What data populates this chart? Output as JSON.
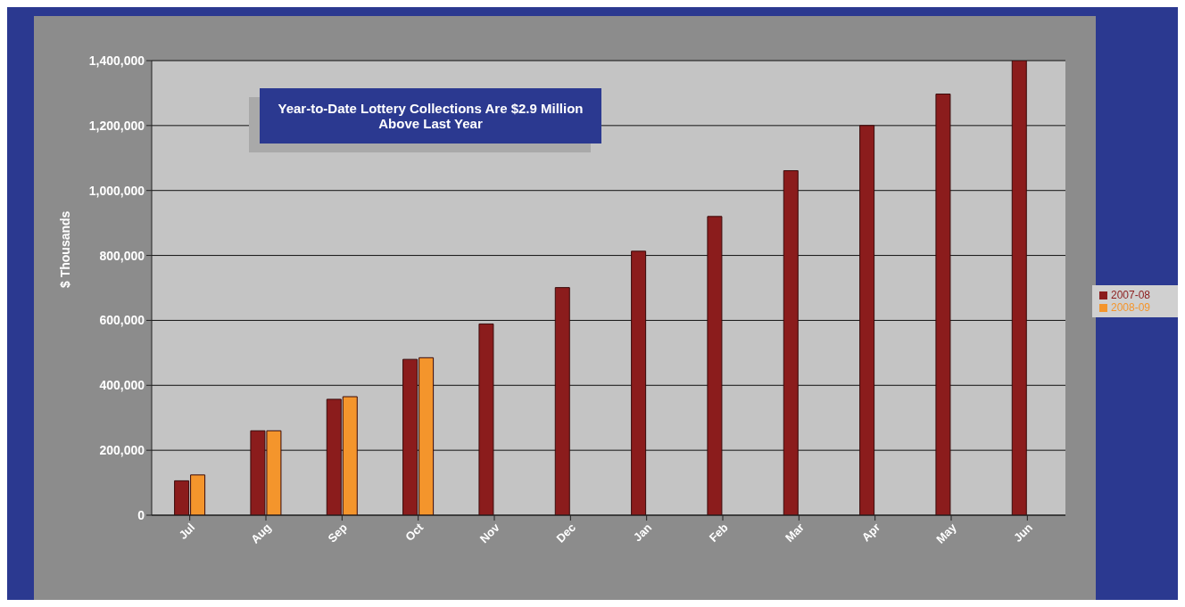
{
  "chart_data": {
    "type": "bar",
    "ylabel": "$ Thousands",
    "categories": [
      "Jul",
      "Aug",
      "Sep",
      "Oct",
      "Nov",
      "Dec",
      "Jan",
      "Feb",
      "Mar",
      "Apr",
      "May",
      "Jun"
    ],
    "series": [
      {
        "name": "2007-08",
        "color": "#8b1c1c",
        "values": [
          106000,
          260000,
          357000,
          480000,
          589000,
          701000,
          813000,
          920000,
          1061000,
          1200000,
          1297000,
          1400000
        ]
      },
      {
        "name": "2008-09",
        "color": "#f4952c",
        "values": [
          124000,
          260000,
          365000,
          485000,
          null,
          null,
          null,
          null,
          null,
          null,
          null,
          null
        ]
      }
    ],
    "ylim": [
      0,
      1400000
    ],
    "yticks": [
      {
        "value": 0,
        "label": "0"
      },
      {
        "value": 200000,
        "label": "200,000"
      },
      {
        "value": 400000,
        "label": "400,000"
      },
      {
        "value": 600000,
        "label": "600,000"
      },
      {
        "value": 800000,
        "label": "800,000"
      },
      {
        "value": 1000000,
        "label": "1,000,000"
      },
      {
        "value": 1200000,
        "label": "1,200,000"
      },
      {
        "value": 1400000,
        "label": "1,400,000"
      }
    ],
    "grid": "y",
    "legend": "right",
    "annotations": [
      "Year-to-Date Lottery Collections Are $2.9 Million Above Last Year"
    ]
  }
}
